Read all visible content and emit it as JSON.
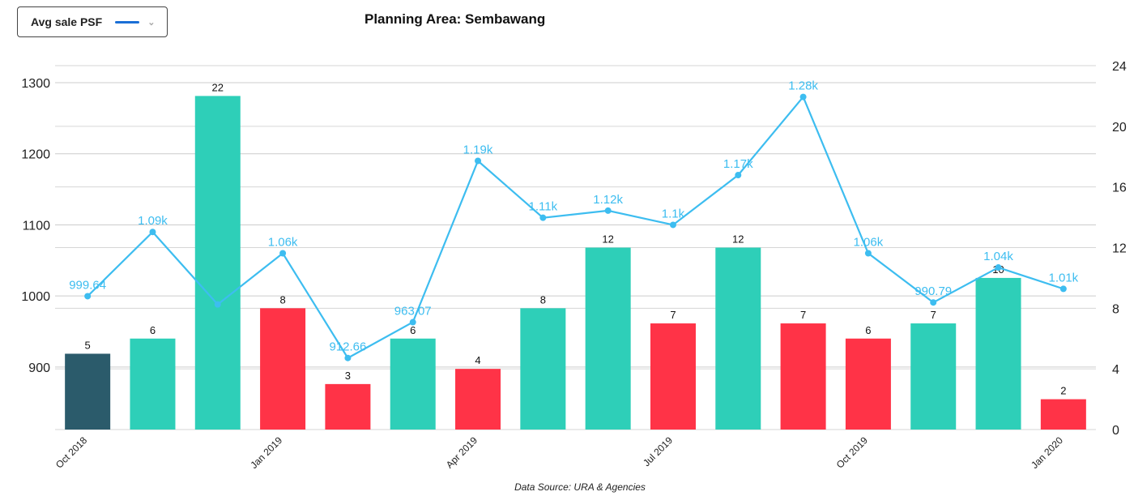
{
  "selector": {
    "label": "Avg sale PSF",
    "swatch_color": "#1a6fd6",
    "icon": "chevron-down-icon"
  },
  "chart_data": {
    "type": "bar+line",
    "title": "Planning Area: Sembawang",
    "source": "Data Source: URA & Agencies",
    "categories": [
      "Oct 2018",
      "Nov 2018",
      "Dec 2018",
      "Jan 2019",
      "Feb 2019",
      "Mar 2019",
      "Apr 2019",
      "May 2019",
      "Jun 2019",
      "Jul 2019",
      "Aug 2019",
      "Sep 2019",
      "Oct 2019",
      "Nov 2019",
      "Dec 2019",
      "Jan 2020"
    ],
    "x_tick_labels": [
      "Oct 2018",
      "",
      "",
      "Jan 2019",
      "",
      "",
      "Apr 2019",
      "",
      "",
      "Jul 2019",
      "",
      "",
      "Oct 2019",
      "",
      "",
      "Jan 2020"
    ],
    "bars": {
      "axis": "right",
      "values": [
        5,
        6,
        22,
        8,
        3,
        6,
        4,
        8,
        12,
        7,
        12,
        7,
        6,
        7,
        10,
        2
      ],
      "colors": [
        "#2b5b6b",
        "#2ecfb8",
        "#2ecfb8",
        "#ff3347",
        "#ff3347",
        "#2ecfb8",
        "#ff3347",
        "#2ecfb8",
        "#2ecfb8",
        "#ff3347",
        "#2ecfb8",
        "#ff3347",
        "#ff3347",
        "#2ecfb8",
        "#2ecfb8",
        "#ff3347"
      ]
    },
    "line": {
      "axis": "left",
      "color": "#3dbdf0",
      "values": [
        999.64,
        1090,
        988,
        1060,
        912.66,
        963.07,
        1190,
        1110,
        1120,
        1100,
        1170,
        1280,
        1060,
        990.79,
        1040,
        1010
      ],
      "labels": [
        "999.64",
        "1.09k",
        "",
        "1.06k",
        "912.66",
        "963.07",
        "1.19k",
        "1.11k",
        "1.12k",
        "1.1k",
        "1.17k",
        "1.28k",
        "1.06k",
        "990.79",
        "1.04k",
        "1.01k"
      ]
    },
    "left_axis": {
      "ticks": [
        900,
        1000,
        1100,
        1200,
        1300
      ],
      "range": [
        812,
        1324
      ]
    },
    "right_axis": {
      "ticks": [
        0,
        4,
        8,
        12,
        16,
        20,
        24
      ],
      "range": [
        0,
        24
      ]
    },
    "grid": true
  }
}
